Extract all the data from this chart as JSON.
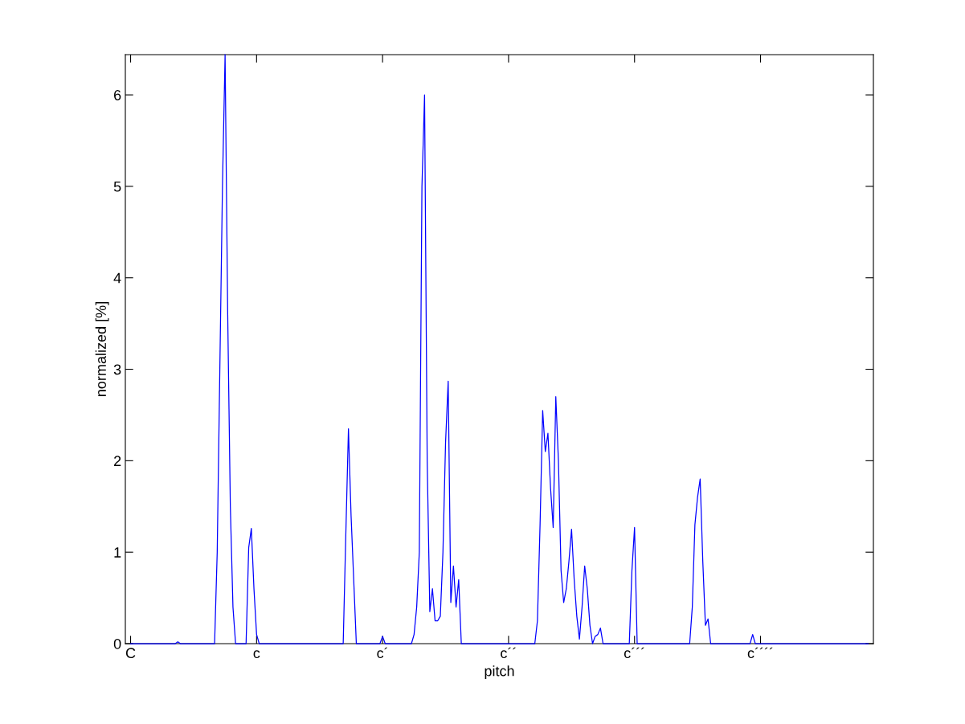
{
  "chart_data": {
    "type": "line",
    "xlabel": "pitch",
    "ylabel": "normalized [%]",
    "ylim": [
      0,
      6.44
    ],
    "yticks": [
      0,
      1,
      2,
      3,
      4,
      5,
      6
    ],
    "grid": false,
    "legend": false,
    "marker": "none",
    "line_style": "solid",
    "categories": [
      "C",
      null,
      null,
      null,
      null,
      null,
      null,
      null,
      null,
      null,
      null,
      null,
      null,
      null,
      null,
      null,
      null,
      null,
      null,
      null,
      null,
      null,
      null,
      null,
      null,
      null,
      null,
      null,
      null,
      null,
      null,
      null,
      null,
      null,
      null,
      null,
      null,
      null,
      null,
      null,
      null,
      null,
      null,
      null,
      null,
      null,
      null,
      null,
      "c",
      null,
      null,
      null,
      null,
      null,
      null,
      null,
      null,
      null,
      null,
      null,
      null,
      null,
      null,
      null,
      null,
      null,
      null,
      null,
      null,
      null,
      null,
      null,
      null,
      null,
      null,
      null,
      null,
      null,
      null,
      null,
      null,
      null,
      null,
      null,
      null,
      null,
      null,
      null,
      null,
      null,
      null,
      null,
      null,
      null,
      null,
      null,
      "c´",
      null,
      null,
      null,
      null,
      null,
      null,
      null,
      null,
      null,
      null,
      null,
      null,
      null,
      null,
      null,
      null,
      null,
      null,
      null,
      null,
      null,
      null,
      null,
      null,
      null,
      null,
      null,
      null,
      null,
      null,
      null,
      null,
      null,
      null,
      null,
      null,
      null,
      null,
      null,
      null,
      null,
      null,
      null,
      null,
      null,
      null,
      null,
      "c´´",
      null,
      null,
      null,
      null,
      null,
      null,
      null,
      null,
      null,
      null,
      null,
      null,
      null,
      null,
      null,
      null,
      null,
      null,
      null,
      null,
      null,
      null,
      null,
      null,
      null,
      null,
      null,
      null,
      null,
      null,
      null,
      null,
      null,
      null,
      null,
      null,
      null,
      null,
      null,
      null,
      null,
      null,
      null,
      null,
      null,
      null,
      null,
      "c´´´",
      null,
      null,
      null,
      null,
      null,
      null,
      null,
      null,
      null,
      null,
      null,
      null,
      null,
      null,
      null,
      null,
      null,
      null,
      null,
      null,
      null,
      null,
      null,
      null,
      null,
      null,
      null,
      null,
      null,
      null,
      null,
      null,
      null,
      null,
      null,
      null,
      null,
      null,
      null,
      null,
      null,
      null,
      null,
      null,
      null,
      null,
      null,
      "c´´´´",
      null,
      null,
      null,
      null,
      null,
      null,
      null,
      null,
      null,
      null,
      null,
      null,
      null,
      null,
      null,
      null,
      null,
      null,
      null,
      null,
      null,
      null,
      null,
      null,
      null,
      null,
      null,
      null,
      null,
      null,
      null,
      null,
      null,
      null,
      null,
      null,
      null,
      null,
      null,
      null,
      null
    ],
    "series": [
      {
        "color": "#0000ff",
        "values": [
          0,
          0,
          0,
          0,
          0,
          0,
          0,
          0,
          0,
          0,
          0,
          0,
          0,
          0,
          0,
          0,
          0,
          0,
          0.02,
          0,
          0,
          0,
          0,
          0,
          0,
          0,
          0,
          0,
          0,
          0,
          0,
          0,
          0,
          1.0,
          3.0,
          5.0,
          6.44,
          3.6,
          1.5,
          0.4,
          0,
          0,
          0,
          0,
          0,
          1.05,
          1.26,
          0.6,
          0.1,
          0,
          0,
          0,
          0,
          0,
          0,
          0,
          0,
          0,
          0,
          0,
          0,
          0,
          0,
          0,
          0,
          0,
          0,
          0,
          0,
          0,
          0,
          0,
          0,
          0,
          0,
          0,
          0,
          0,
          0,
          0,
          0,
          0,
          1.2,
          2.35,
          1.4,
          0.7,
          0,
          0,
          0,
          0,
          0,
          0,
          0,
          0,
          0,
          0,
          0.08,
          0,
          0,
          0,
          0,
          0,
          0,
          0,
          0,
          0,
          0,
          0,
          0.1,
          0.4,
          1.0,
          5.0,
          6.0,
          2.0,
          0.35,
          0.6,
          0.25,
          0.25,
          0.3,
          1.0,
          2.2,
          2.87,
          0.45,
          0.85,
          0.4,
          0.7,
          0,
          0,
          0,
          0,
          0,
          0,
          0,
          0,
          0,
          0,
          0,
          0,
          0,
          0,
          0,
          0,
          0,
          0,
          0,
          0,
          0,
          0,
          0,
          0,
          0,
          0,
          0,
          0,
          0,
          0.25,
          1.3,
          2.55,
          2.1,
          2.3,
          1.7,
          1.27,
          2.7,
          2.0,
          0.8,
          0.45,
          0.6,
          0.9,
          1.25,
          0.7,
          0.3,
          0.05,
          0.4,
          0.85,
          0.6,
          0.2,
          0,
          0.08,
          0.1,
          0.17,
          0,
          0,
          0,
          0,
          0,
          0,
          0,
          0,
          0,
          0,
          0,
          0.8,
          1.27,
          0,
          0,
          0,
          0,
          0,
          0,
          0,
          0,
          0,
          0,
          0,
          0,
          0,
          0,
          0,
          0,
          0,
          0,
          0,
          0,
          0,
          0.4,
          1.3,
          1.6,
          1.8,
          0.9,
          0.2,
          0.27,
          0,
          0,
          0,
          0,
          0,
          0,
          0,
          0,
          0,
          0,
          0,
          0,
          0,
          0,
          0,
          0,
          0.1,
          0,
          0,
          0,
          0,
          0,
          0,
          0,
          0,
          0,
          0,
          0,
          0,
          0,
          0,
          0,
          0,
          0,
          0,
          0,
          0,
          0,
          0,
          0,
          0,
          0,
          0,
          0,
          0,
          0,
          0,
          0,
          0,
          0,
          0,
          0,
          0,
          0,
          0,
          0,
          0,
          0,
          0,
          0,
          0
        ]
      }
    ]
  }
}
